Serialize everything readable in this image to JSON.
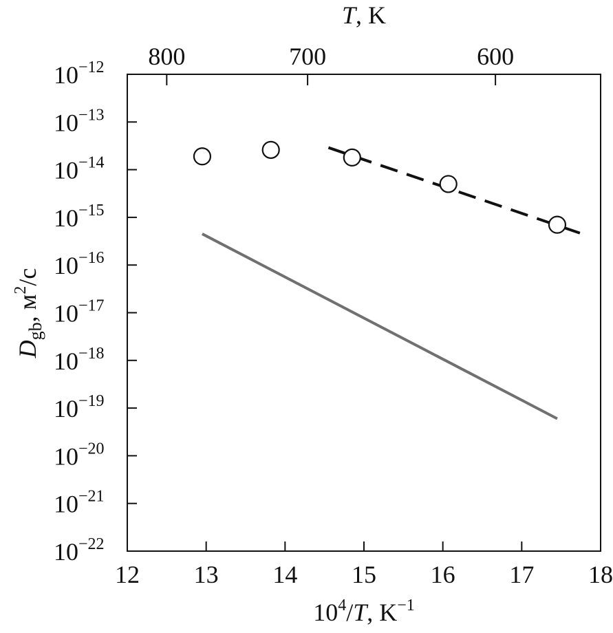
{
  "chart_data": {
    "type": "scatter",
    "title": "",
    "x_axis": {
      "label_base": "10",
      "label_sup": "4",
      "label_tail": "/",
      "label_var": "T",
      "label_unit": ", K",
      "label_unit_sup": "−1",
      "range": [
        12,
        18
      ],
      "ticks": [
        12,
        13,
        14,
        15,
        16,
        17,
        18
      ],
      "tick_labels": [
        "12",
        "13",
        "14",
        "15",
        "16",
        "17",
        "18"
      ]
    },
    "top_axis": {
      "label_var": "T",
      "label_unit": ", K",
      "ticks": [
        800,
        700,
        600
      ],
      "tick_labels": [
        "800",
        "700",
        "600"
      ]
    },
    "y_axis": {
      "label_var": "D",
      "label_sub": "gb",
      "label_unit": ", м",
      "label_unit_sup": "2",
      "label_unit_tail": "/c",
      "scale": "log",
      "range": [
        1e-22,
        1e-12
      ],
      "tick_exponents": [
        -12,
        -13,
        -14,
        -15,
        -16,
        -17,
        -18,
        -19,
        -20,
        -21,
        -22
      ],
      "tick_base": "10"
    },
    "grid": false,
    "series": [
      {
        "kind": "scatter",
        "marker": "open-circle",
        "color": "#111111",
        "x": [
          12.95,
          13.82,
          14.85,
          16.07,
          17.45
        ],
        "y": [
          1.9e-14,
          2.6e-14,
          1.8e-14,
          5e-15,
          7e-16
        ]
      },
      {
        "kind": "line",
        "style": "dashed",
        "color": "#111111",
        "x": [
          14.55,
          17.75
        ],
        "y": [
          2.9e-14,
          4.6e-16
        ]
      },
      {
        "kind": "line",
        "style": "solid",
        "color": "#707070",
        "x": [
          12.95,
          17.45
        ],
        "y": [
          4.5e-16,
          6e-20
        ]
      }
    ]
  }
}
